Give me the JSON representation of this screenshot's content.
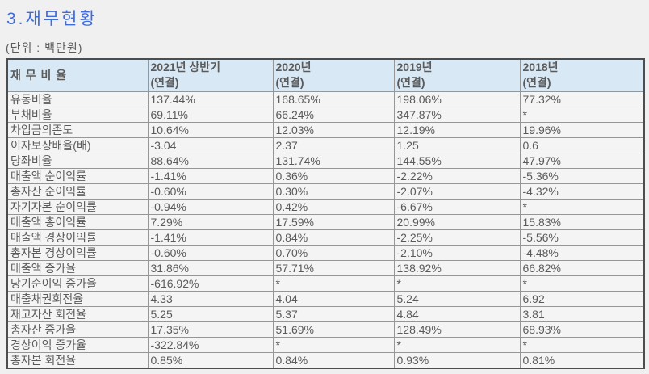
{
  "page": {
    "title": "3.재무현황",
    "unit_label": "(단위 : 백만원)"
  },
  "colors": {
    "title_blue": "#3f6bdb",
    "header_bg": "#d9e8f5",
    "cell_bg": "#f4f4f4",
    "page_bg": "#f0f0f0",
    "border_outer": "#4d4d4d",
    "border_inner": "#969696",
    "text": "#5a5a5a"
  },
  "table": {
    "header": {
      "ratio_label": "재 무 비 율",
      "year_cols": [
        {
          "line1": "2021년 상반기",
          "line2": "(연결)"
        },
        {
          "line1": "2020년",
          "line2": "(연결)"
        },
        {
          "line1": "2019년",
          "line2": "(연결)"
        },
        {
          "line1": "2018년",
          "line2": "(연결)"
        }
      ]
    },
    "rows": [
      [
        "유동비율",
        "137.44%",
        "168.65%",
        "198.06%",
        "77.32%"
      ],
      [
        "부채비율",
        "69.11%",
        "66.24%",
        "347.87%",
        "*"
      ],
      [
        "차입금의존도",
        "10.64%",
        "12.03%",
        "12.19%",
        "19.96%"
      ],
      [
        "이자보상배율(배)",
        "-3.04",
        "2.37",
        "1.25",
        "0.6"
      ],
      [
        "당좌비율",
        "88.64%",
        "131.74%",
        "144.55%",
        "47.97%"
      ],
      [
        "매출액 순이익률",
        "-1.41%",
        "0.36%",
        "-2.22%",
        "-5.36%"
      ],
      [
        "총자산 순이익률",
        "-0.60%",
        "0.30%",
        "-2.07%",
        "-4.32%"
      ],
      [
        "자기자본 순이익률",
        "-0.94%",
        "0.42%",
        "-6.67%",
        "*"
      ],
      [
        "매출액 총이익률",
        "7.29%",
        "17.59%",
        "20.99%",
        "15.83%"
      ],
      [
        "매출액 경상이익률",
        "-1.41%",
        "0.84%",
        "-2.25%",
        "-5.56%"
      ],
      [
        "총자본 경상이익률",
        "-0.60%",
        "0.70%",
        "-2.10%",
        "-4.48%"
      ],
      [
        "매출액 증가율",
        "31.86%",
        "57.71%",
        "138.92%",
        "66.82%"
      ],
      [
        "당기순이익 증가율",
        "-616.92%",
        "*",
        "*",
        "*"
      ],
      [
        "매출채권회전율",
        "4.33",
        "4.04",
        "5.24",
        "6.92"
      ],
      [
        "재고자산 회전율",
        "5.25",
        "5.37",
        "4.84",
        "3.81"
      ],
      [
        "총자산 증가율",
        "17.35%",
        "51.69%",
        "128.49%",
        "68.93%"
      ],
      [
        "경상이익 증가율",
        "-322.84%",
        "*",
        "*",
        "*"
      ],
      [
        "총자본 회전율",
        "0.85%",
        "0.84%",
        "0.93%",
        "0.81%"
      ]
    ]
  }
}
